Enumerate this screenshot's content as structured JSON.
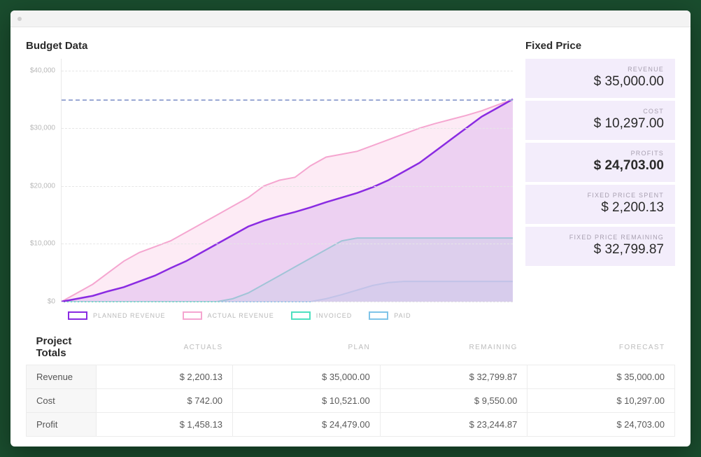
{
  "sections": {
    "budget_title": "Budget Data",
    "fixed_price_title": "Fixed Price",
    "totals_title": "Project Totals"
  },
  "chart": {
    "type": "area",
    "ylim": [
      0,
      42000
    ],
    "yticks": [
      0,
      10000,
      20000,
      30000,
      40000
    ],
    "ytick_labels": [
      "$0",
      "$10,000",
      "$20,000",
      "$30,000",
      "$40,000"
    ],
    "target_value": 35000,
    "target_color": "#9aa8d4",
    "grid_color": "#e6e6e6",
    "background_color": "#ffffff",
    "x_count": 30,
    "series": [
      {
        "name": "PLANNED REVENUE",
        "stroke": "#8a2be2",
        "fill": "#8a2be222",
        "stroke_width": 2.5,
        "values": [
          0,
          500,
          1000,
          1800,
          2500,
          3500,
          4500,
          5800,
          7000,
          8500,
          10000,
          11500,
          13000,
          14000,
          14800,
          15500,
          16300,
          17200,
          18000,
          18800,
          19800,
          21000,
          22500,
          24000,
          26000,
          28000,
          30000,
          32000,
          33500,
          35000
        ]
      },
      {
        "name": "ACTUAL REVENUE",
        "stroke": "#f5a6d0",
        "fill": "#fbd8ec80",
        "stroke_width": 2,
        "values": [
          0,
          1500,
          3000,
          5000,
          7000,
          8500,
          9500,
          10500,
          12000,
          13500,
          15000,
          16500,
          18000,
          20000,
          21000,
          21500,
          23500,
          25000,
          25500,
          26000,
          27000,
          28000,
          29000,
          30000,
          30800,
          31500,
          32200,
          33000,
          34000,
          35000
        ]
      },
      {
        "name": "INVOICED",
        "stroke": "#4ee0c0",
        "fill": "#b8f3e680",
        "stroke_width": 2,
        "values": [
          0,
          0,
          0,
          0,
          0,
          0,
          0,
          0,
          0,
          0,
          0,
          500,
          1500,
          3000,
          4500,
          6000,
          7500,
          9000,
          10500,
          11000,
          11000,
          11000,
          11000,
          11000,
          11000,
          11000,
          11000,
          11000,
          11000,
          11000
        ]
      },
      {
        "name": "PAID",
        "stroke": "#7fc4e8",
        "fill": "#c5e5f580",
        "stroke_width": 2,
        "values": [
          0,
          0,
          0,
          0,
          0,
          0,
          0,
          0,
          0,
          0,
          0,
          0,
          0,
          0,
          0,
          0,
          0,
          500,
          1200,
          2000,
          2800,
          3300,
          3500,
          3500,
          3500,
          3500,
          3500,
          3500,
          3500,
          3500
        ]
      }
    ]
  },
  "legend": [
    {
      "label": "PLANNED REVENUE",
      "color": "#8a2be2"
    },
    {
      "label": "ACTUAL REVENUE",
      "color": "#f5a6d0"
    },
    {
      "label": "INVOICED",
      "color": "#4ee0c0"
    },
    {
      "label": "PAID",
      "color": "#7fc4e8"
    }
  ],
  "kpis": [
    {
      "label": "REVENUE",
      "value": "$ 35,000.00",
      "bold": false
    },
    {
      "label": "COST",
      "value": "$ 10,297.00",
      "bold": false
    },
    {
      "label": "PROFITS",
      "value": "$ 24,703.00",
      "bold": true
    },
    {
      "label": "FIXED PRICE SPENT",
      "value": "$ 2,200.13",
      "bold": false
    },
    {
      "label": "FIXED PRICE REMAINING",
      "value": "$ 32,799.87",
      "bold": false
    }
  ],
  "totals": {
    "columns": [
      "ACTUALS",
      "PLAN",
      "REMAINING",
      "FORECAST"
    ],
    "rows": [
      {
        "label": "Revenue",
        "cells": [
          "$ 2,200.13",
          "$ 35,000.00",
          "$ 32,799.87",
          "$ 35,000.00"
        ]
      },
      {
        "label": "Cost",
        "cells": [
          "$ 742.00",
          "$ 10,521.00",
          "$ 9,550.00",
          "$ 10,297.00"
        ]
      },
      {
        "label": "Profit",
        "cells": [
          "$ 1,458.13",
          "$ 24,479.00",
          "$ 23,244.87",
          "$ 24,703.00"
        ]
      }
    ]
  }
}
